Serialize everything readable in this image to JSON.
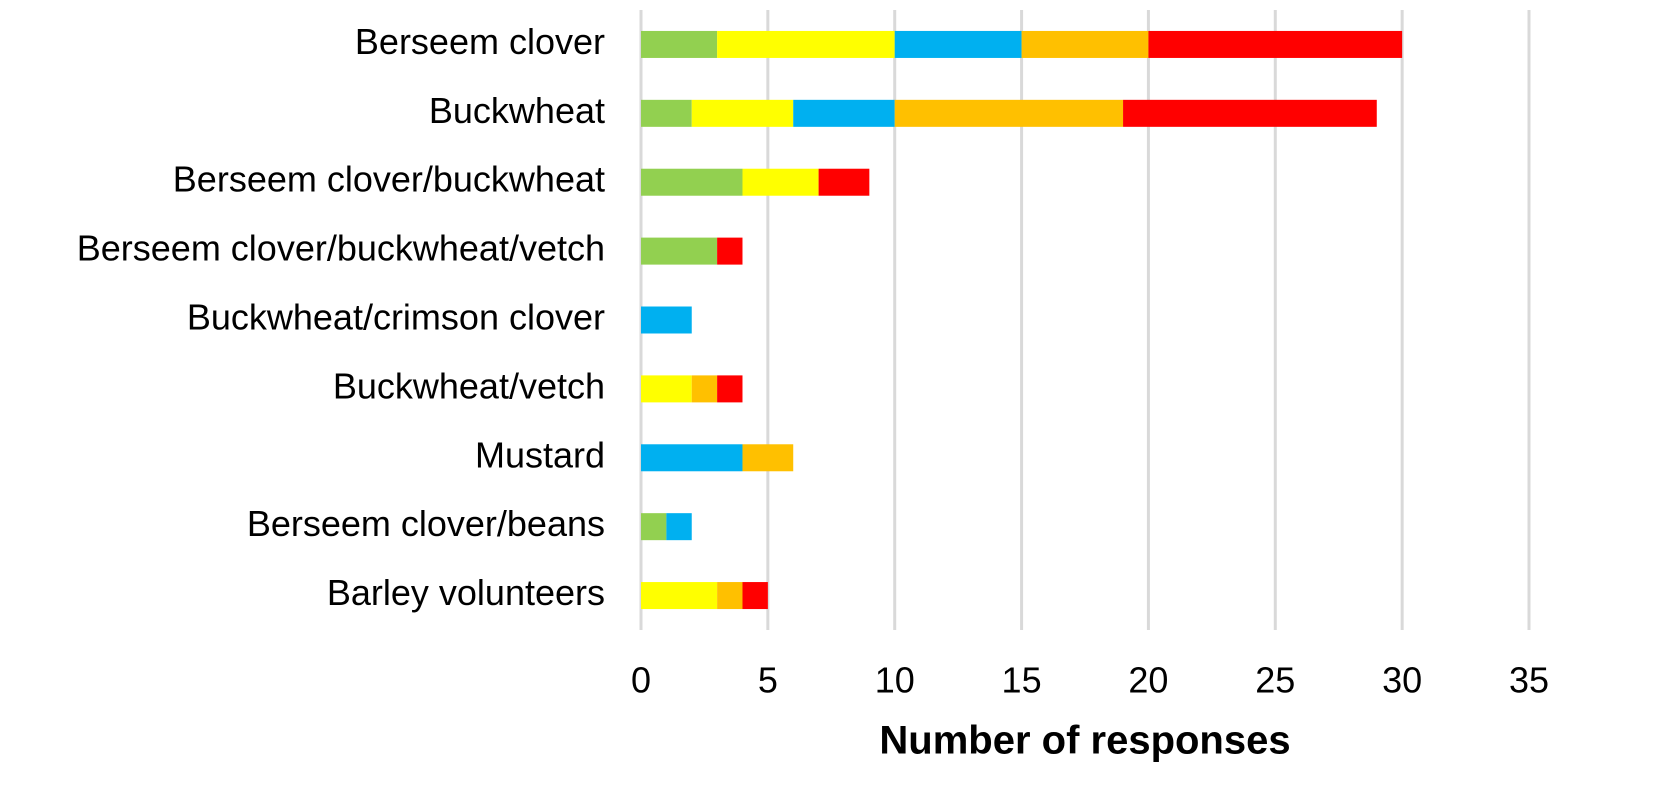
{
  "chart_data": {
    "type": "stacked-barh",
    "categories": [
      "Berseem clover",
      "Buckwheat",
      "Berseem clover/buckwheat",
      "Berseem clover/buckwheat/vetch",
      "Buckwheat/crimson clover",
      "Buckwheat/vetch",
      "Mustard",
      "Berseem clover/beans",
      "Barley volunteers"
    ],
    "series": [
      {
        "color": "#92d050",
        "values": [
          3,
          2,
          4,
          3,
          0,
          0,
          0,
          1,
          0
        ]
      },
      {
        "color": "#ffff00",
        "values": [
          7,
          4,
          3,
          0,
          0,
          2,
          0,
          0,
          3
        ]
      },
      {
        "color": "#00b0f0",
        "values": [
          5,
          4,
          0,
          0,
          2,
          0,
          4,
          1,
          0
        ]
      },
      {
        "color": "#ffc000",
        "values": [
          5,
          9,
          0,
          0,
          0,
          1,
          2,
          0,
          1
        ]
      },
      {
        "color": "#ff0000",
        "values": [
          10,
          10,
          2,
          1,
          0,
          1,
          0,
          0,
          1
        ]
      }
    ],
    "xlabel": "Number of responses",
    "xlim": [
      0,
      35
    ],
    "xticks": [
      0,
      5,
      10,
      15,
      20,
      25,
      30,
      35
    ],
    "grid": true
  }
}
